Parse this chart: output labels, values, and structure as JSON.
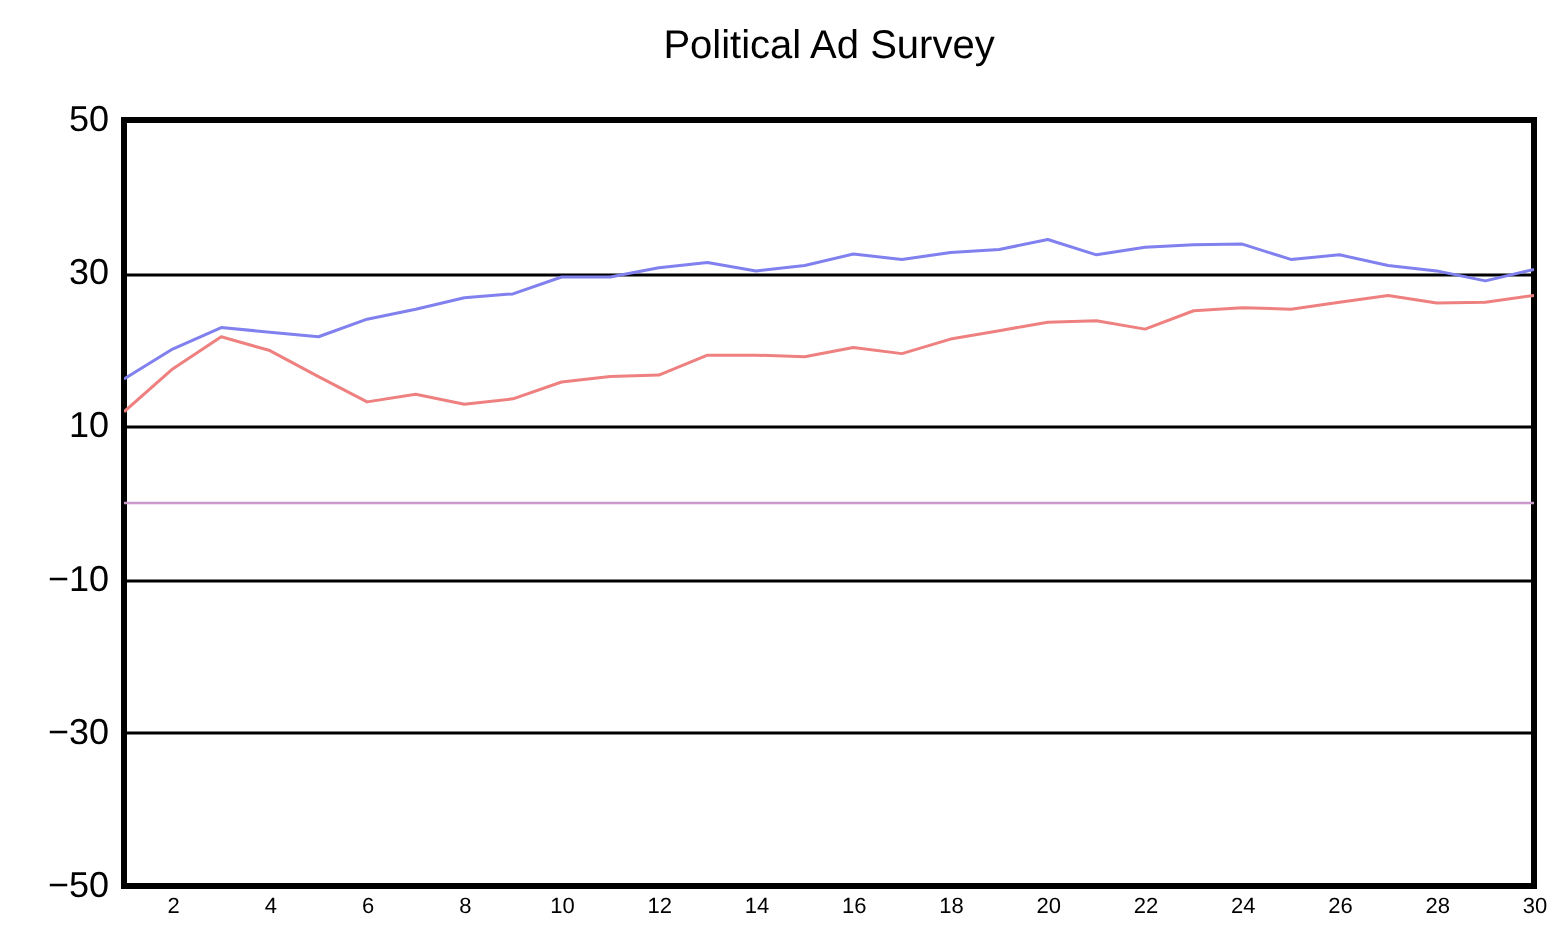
{
  "chart_data": {
    "type": "line",
    "title": "Political Ad Survey",
    "x": [
      1,
      2,
      3,
      4,
      5,
      6,
      7,
      8,
      9,
      10,
      11,
      12,
      13,
      14,
      15,
      16,
      17,
      18,
      19,
      20,
      21,
      22,
      23,
      24,
      25,
      26,
      27,
      28,
      29,
      30
    ],
    "series": [
      {
        "color": "#8080ee",
        "values": [
          16.2,
          20.1,
          22.9,
          22.3,
          21.7,
          24,
          25.3,
          26.8,
          27.3,
          29.5,
          29.5,
          30.7,
          31.4,
          30.3,
          31,
          32.5,
          31.8,
          32.7,
          33.1,
          34.4,
          32.4,
          33.4,
          33.7,
          33.8,
          31.8,
          32.4,
          31,
          30.3,
          29,
          30.5
        ]
      },
      {
        "color": "#ee8080",
        "values": [
          11.9,
          17.5,
          21.7,
          19.9,
          16.5,
          13.2,
          14.2,
          12.9,
          13.6,
          15.8,
          16.5,
          16.7,
          19.3,
          19.3,
          19.1,
          20.3,
          19.5,
          21.4,
          22.5,
          23.6,
          23.8,
          22.7,
          25.1,
          25.5,
          25.3,
          26.2,
          27.1,
          26.1,
          26.2,
          27.1
        ]
      }
    ],
    "xlim": [
      1,
      30
    ],
    "xticks": [
      2,
      4,
      6,
      8,
      10,
      12,
      14,
      16,
      18,
      20,
      22,
      24,
      26,
      28,
      30
    ],
    "ylim": [
      -50,
      50
    ],
    "yticks": [
      -50,
      -30,
      -10,
      10,
      30,
      50
    ],
    "ref_lines": [
      {
        "axis": "y",
        "value": 0,
        "color": "#cc99cc"
      }
    ],
    "grid": "y",
    "legend": false
  }
}
